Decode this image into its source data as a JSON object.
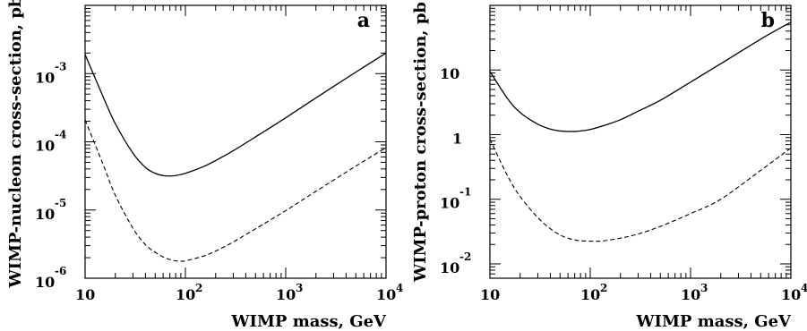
{
  "chart_data": [
    {
      "type": "line",
      "panel_label": "a",
      "xlabel": "WIMP mass, GeV",
      "ylabel": "WIMP-nucleon cross-section, pb",
      "xscale": "log",
      "yscale": "log",
      "xlim": [
        10,
        10000
      ],
      "ylim": [
        1e-06,
        0.01
      ],
      "x_ticks": [
        {
          "value": 10,
          "base": "10",
          "exp": ""
        },
        {
          "value": 100,
          "base": "10",
          "exp": "2"
        },
        {
          "value": 1000,
          "base": "10",
          "exp": "3"
        },
        {
          "value": 10000,
          "base": "10",
          "exp": "4"
        }
      ],
      "y_ticks": [
        {
          "value": 1e-06,
          "base": "10",
          "exp": "-6"
        },
        {
          "value": 1e-05,
          "base": "10",
          "exp": "-5"
        },
        {
          "value": 0.0001,
          "base": "10",
          "exp": "-4"
        },
        {
          "value": 0.001,
          "base": "10",
          "exp": "-3"
        }
      ],
      "series": [
        {
          "style": "solid",
          "x": [
            10,
            15,
            20,
            30,
            40,
            50,
            60,
            70,
            80,
            100,
            150,
            200,
            300,
            500,
            1000,
            2000,
            5000,
            10000
          ],
          "y": [
            0.0019,
            0.00047,
            0.000185,
            6.8e-05,
            4.2e-05,
            3.45e-05,
            3.2e-05,
            3.15e-05,
            3.2e-05,
            3.45e-05,
            4.3e-05,
            5.3e-05,
            7.4e-05,
            0.000118,
            0.000225,
            0.00044,
            0.00105,
            0.002
          ]
        },
        {
          "style": "dashed",
          "x": [
            10,
            15,
            20,
            30,
            40,
            50,
            60,
            70,
            80,
            90,
            100,
            150,
            200,
            300,
            500,
            1000,
            2000,
            5000,
            10000
          ],
          "y": [
            0.00021,
            4.8e-05,
            1.65e-05,
            5.4e-06,
            3.1e-06,
            2.4e-06,
            2.05e-06,
            1.88e-06,
            1.8e-06,
            1.78e-06,
            1.8e-06,
            2.1e-06,
            2.5e-06,
            3.4e-06,
            5.3e-06,
            9.8e-06,
            1.88e-05,
            4.4e-05,
            8.2e-05
          ]
        }
      ]
    },
    {
      "type": "line",
      "panel_label": "b",
      "xlabel": "WIMP mass, GeV",
      "ylabel": "WIMP-proton cross-section, pb",
      "xscale": "log",
      "yscale": "log",
      "xlim": [
        10,
        10000
      ],
      "ylim": [
        0.006,
        100
      ],
      "x_ticks": [
        {
          "value": 10,
          "base": "10",
          "exp": ""
        },
        {
          "value": 100,
          "base": "10",
          "exp": "2"
        },
        {
          "value": 1000,
          "base": "10",
          "exp": "3"
        },
        {
          "value": 10000,
          "base": "10",
          "exp": "4"
        }
      ],
      "y_ticks": [
        {
          "value": 0.01,
          "base": "10",
          "exp": "-2"
        },
        {
          "value": 0.1,
          "base": "10",
          "exp": "-1"
        },
        {
          "value": 1,
          "base": "1",
          "exp": ""
        },
        {
          "value": 10,
          "base": "10",
          "exp": ""
        }
      ],
      "series": [
        {
          "style": "solid",
          "x": [
            10,
            15,
            20,
            30,
            40,
            50,
            60,
            70,
            80,
            100,
            150,
            200,
            300,
            500,
            1000,
            2000,
            5000,
            10000
          ],
          "y": [
            9.5,
            3.6,
            2.2,
            1.45,
            1.22,
            1.14,
            1.12,
            1.12,
            1.14,
            1.2,
            1.45,
            1.7,
            2.3,
            3.4,
            6.5,
            12.5,
            30,
            55
          ]
        },
        {
          "style": "dashed",
          "x": [
            10,
            15,
            20,
            30,
            40,
            50,
            60,
            70,
            80,
            100,
            130,
            200,
            300,
            500,
            1000,
            2000,
            5000,
            10000
          ],
          "y": [
            0.85,
            0.23,
            0.11,
            0.052,
            0.035,
            0.028,
            0.025,
            0.0235,
            0.0228,
            0.0225,
            0.0226,
            0.025,
            0.029,
            0.038,
            0.06,
            0.1,
            0.28,
            0.62
          ]
        }
      ]
    }
  ]
}
